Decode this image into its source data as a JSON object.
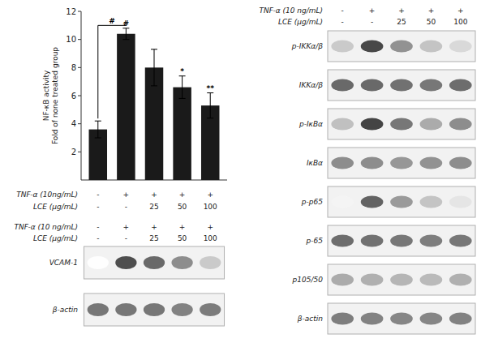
{
  "chart_data": [
    {
      "type": "bar",
      "ylabel": "NF-κB activity\nFold of none treated group",
      "categories": [
        null,
        null,
        null,
        null,
        null
      ],
      "values": [
        3.6,
        10.4,
        8.0,
        6.6,
        5.3
      ],
      "errors": [
        0.6,
        0.4,
        1.3,
        0.8,
        0.9
      ],
      "color": "#1a1a1a",
      "ylim": [
        0,
        12
      ],
      "yticks": [
        2,
        4,
        6,
        8,
        10,
        12
      ],
      "grid": false,
      "annotations": [
        {
          "text": "#",
          "from": 0,
          "to": 1,
          "y": 11.0
        },
        {
          "text": "#",
          "at": 1
        },
        {
          "text": "*",
          "at": 3
        },
        {
          "text": "**",
          "at": 4
        }
      ],
      "treatment_rows": [
        {
          "name": "TNF-α (10ng/mL)",
          "labels": [
            "-",
            "+",
            "+",
            "+",
            "+"
          ]
        },
        {
          "name": "LCE (μg/mL)",
          "labels": [
            "-",
            "-",
            "25",
            "50",
            "100"
          ]
        }
      ]
    },
    {
      "type": "heatmap",
      "treatment_rows": [
        {
          "name": "TNF-α (10 ng/mL)",
          "labels": [
            "-",
            "+",
            "+",
            "+",
            "+"
          ]
        },
        {
          "name": "LCE (μg/mL)",
          "labels": [
            "-",
            "-",
            "25",
            "50",
            "100"
          ]
        }
      ],
      "rows": [
        "VCAM-1",
        "β-actin"
      ],
      "cells": [
        [
          0,
          0.85,
          0.72,
          0.55,
          0.25
        ],
        [
          0.65,
          0.65,
          0.65,
          0.6,
          0.63
        ]
      ]
    },
    {
      "type": "heatmap",
      "treatment_rows": [
        {
          "name": "TNF-α (10 ng/mL)",
          "labels": [
            "-",
            "+",
            "+",
            "+",
            "+"
          ]
        },
        {
          "name": "LCE (μg/mL)",
          "labels": [
            "-",
            "-",
            "25",
            "50",
            "100"
          ]
        }
      ],
      "rows": [
        "p-IKKα/β",
        "IKKα/β",
        "p-IκBα",
        "IκBα",
        "p-p65",
        "p-65",
        "p105/50",
        "β-actin"
      ],
      "cells": [
        [
          0.25,
          0.88,
          0.52,
          0.28,
          0.18
        ],
        [
          0.72,
          0.72,
          0.68,
          0.65,
          0.7
        ],
        [
          0.3,
          0.9,
          0.65,
          0.4,
          0.55
        ],
        [
          0.55,
          0.55,
          0.5,
          0.52,
          0.55
        ],
        [
          0.05,
          0.75,
          0.48,
          0.28,
          0.12
        ],
        [
          0.7,
          0.68,
          0.65,
          0.62,
          0.65
        ],
        [
          0.4,
          0.38,
          0.35,
          0.33,
          0.38
        ],
        [
          0.62,
          0.6,
          0.58,
          0.58,
          0.6
        ]
      ]
    }
  ]
}
